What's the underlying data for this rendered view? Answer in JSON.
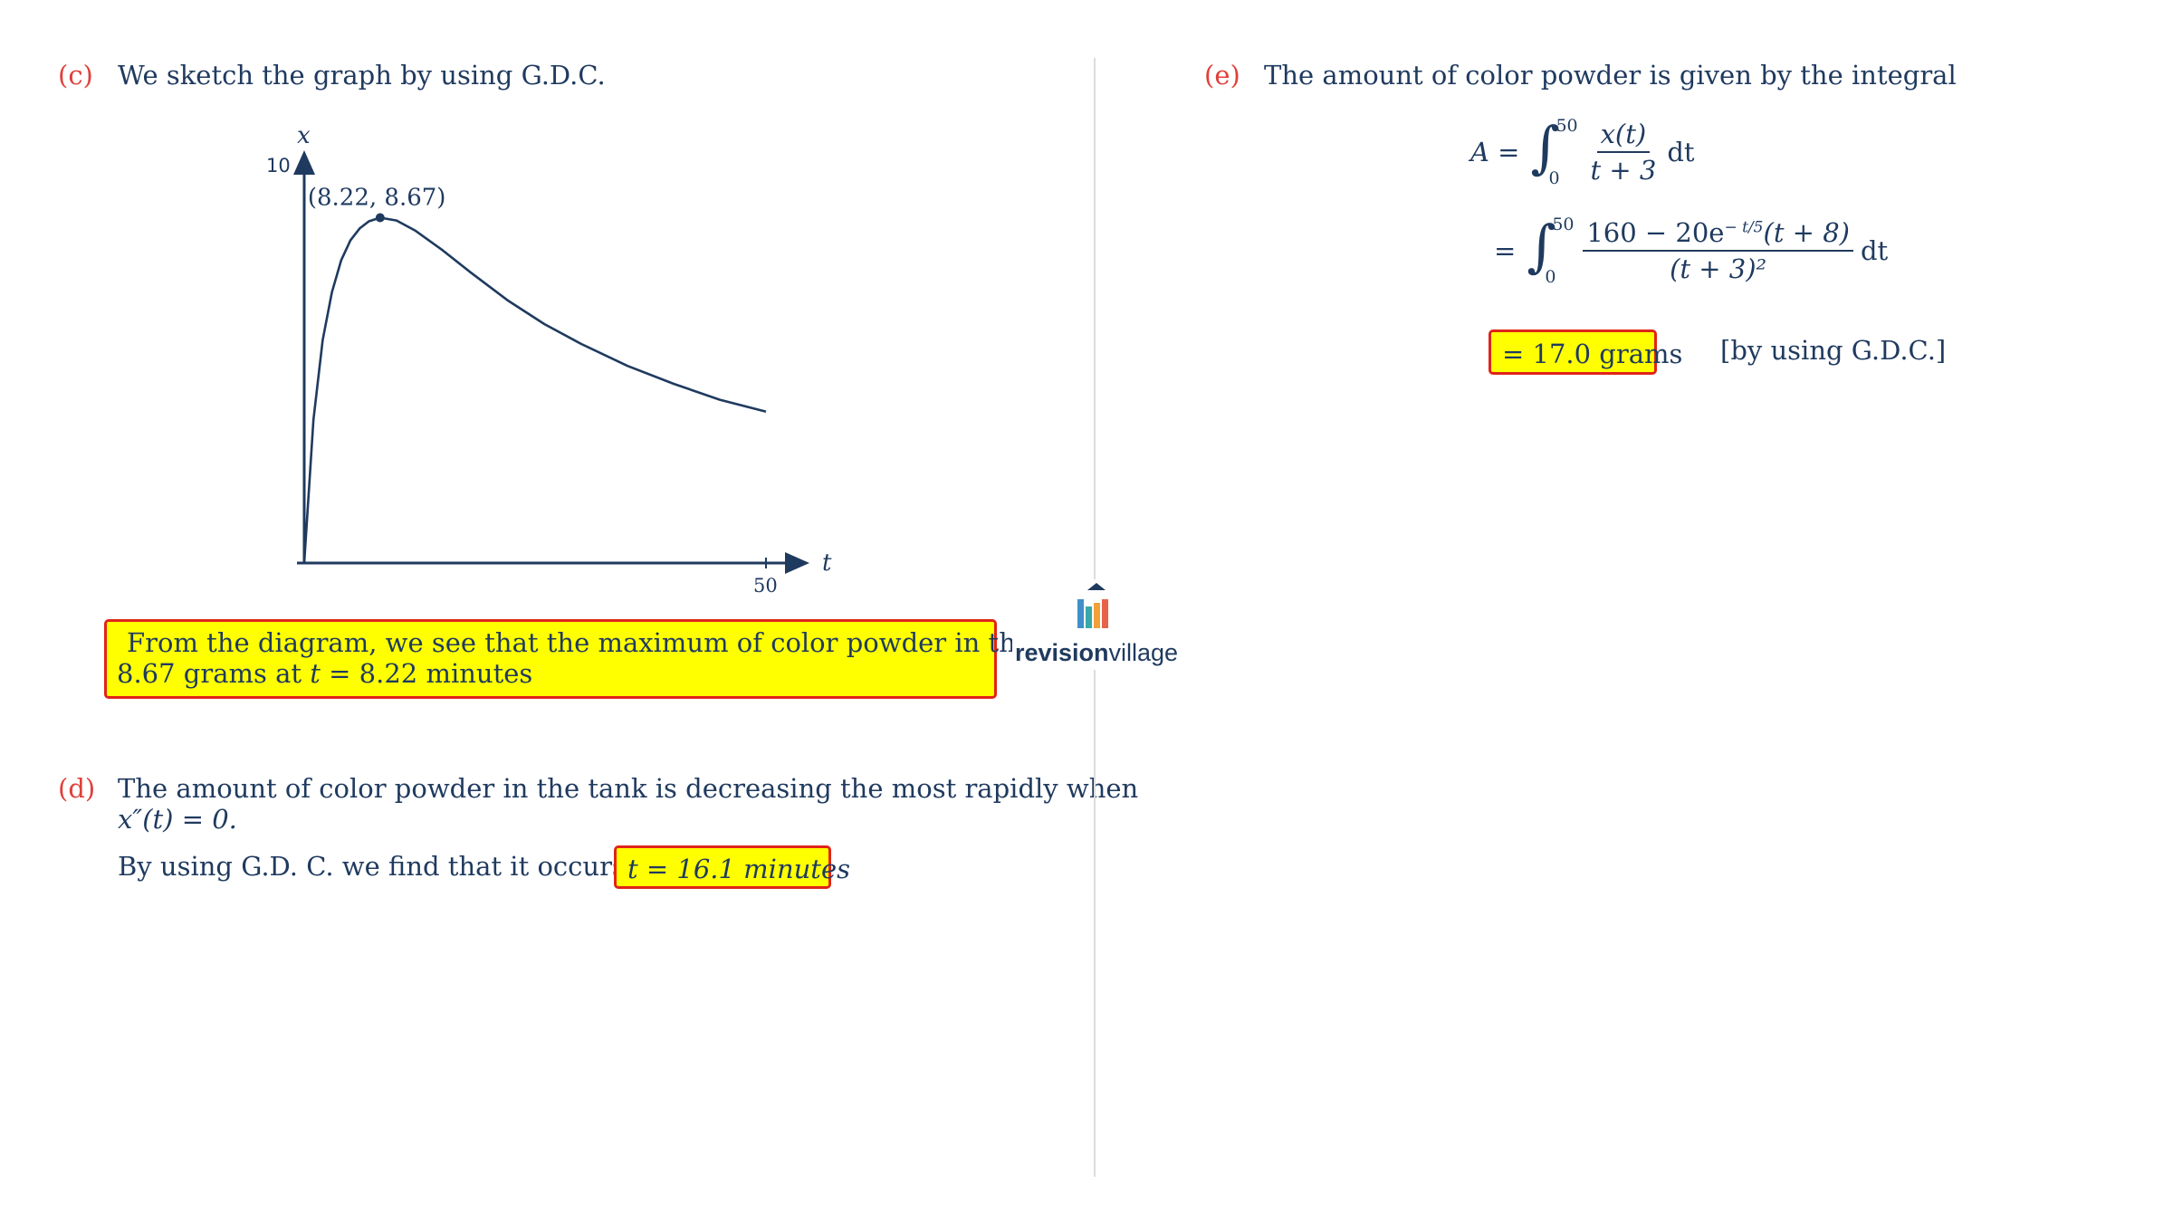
{
  "part_c": {
    "label": "(c)",
    "text": "We sketch the graph by using G.D.C.",
    "highlight_line1": "From the diagram, we see that the maximum of color powder in the tank is",
    "highlight_line2_a": "8.67 grams at ",
    "highlight_line2_var": "t",
    "highlight_line2_b": " = 8.22 minutes"
  },
  "chart_data": {
    "type": "line",
    "xlabel": "t",
    "ylabel": "x",
    "x_tick_labels": [
      "50"
    ],
    "y_tick_labels": [
      "10"
    ],
    "xlim": [
      0,
      55
    ],
    "ylim": [
      0,
      10
    ],
    "series": [
      {
        "x": [
          0,
          1,
          2,
          3,
          4,
          5,
          6,
          7,
          8.22,
          10,
          12,
          15,
          18,
          22,
          26,
          30,
          35,
          40,
          45,
          50
        ],
        "y": [
          0,
          3.6,
          5.6,
          6.8,
          7.6,
          8.1,
          8.4,
          8.58,
          8.67,
          8.6,
          8.35,
          7.85,
          7.3,
          6.6,
          6.0,
          5.5,
          4.95,
          4.5,
          4.1,
          3.8
        ]
      }
    ],
    "annotations": [
      {
        "text": "(8.22, 8.67)",
        "x": 8.22,
        "y": 8.67
      }
    ]
  },
  "part_d": {
    "label": "(d)",
    "text_line1": "The amount of color powder in the tank is decreasing the most rapidly when",
    "text_line2": "x″(t) = 0.",
    "text_line3": "By using G.D. C. we find that it occurs at",
    "answer": "t = 16.1 minutes"
  },
  "part_e": {
    "label": "(e)",
    "text": "The amount of color powder is given by the integral",
    "lhs": "A =",
    "integral_upper": "50",
    "integral_lower": "0",
    "integrand1_num": "x(t)",
    "integrand1_den": "t + 3",
    "dt": "dt",
    "eq": "=",
    "integrand2_num_a": "160 − 20e",
    "integrand2_exp": "− t/5",
    "integrand2_num_b": "(t + 8)",
    "integrand2_den": "(t + 3)²",
    "answer": "= 17.0 grams",
    "note": "[by using G.D.C.]"
  },
  "logo": {
    "brand_bold": "revision",
    "brand_light": "village"
  }
}
